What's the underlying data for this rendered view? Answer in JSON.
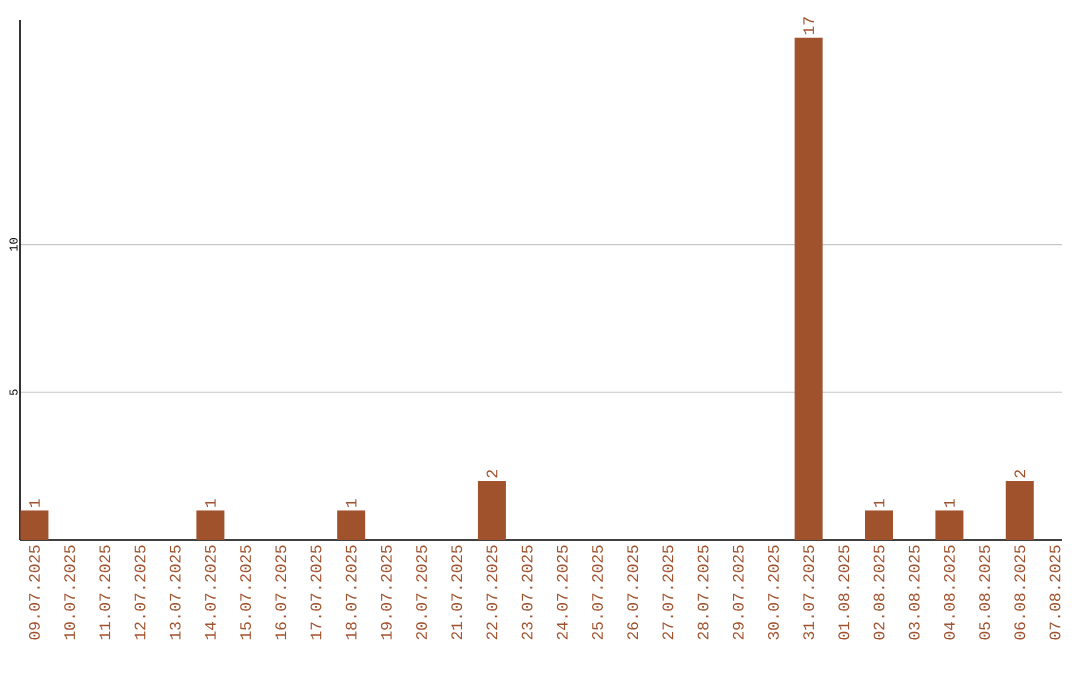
{
  "chart_data": {
    "type": "bar",
    "categories": [
      "09.07.2025",
      "10.07.2025",
      "11.07.2025",
      "12.07.2025",
      "13.07.2025",
      "14.07.2025",
      "15.07.2025",
      "16.07.2025",
      "17.07.2025",
      "18.07.2025",
      "19.07.2025",
      "20.07.2025",
      "21.07.2025",
      "22.07.2025",
      "23.07.2025",
      "24.07.2025",
      "25.07.2025",
      "26.07.2025",
      "27.07.2025",
      "28.07.2025",
      "29.07.2025",
      "30.07.2025",
      "31.07.2025",
      "01.08.2025",
      "02.08.2025",
      "03.08.2025",
      "04.08.2025",
      "05.08.2025",
      "06.08.2025",
      "07.08.2025"
    ],
    "values": [
      1,
      0,
      0,
      0,
      0,
      1,
      0,
      0,
      0,
      1,
      0,
      0,
      0,
      2,
      0,
      0,
      0,
      0,
      0,
      0,
      0,
      0,
      17,
      0,
      1,
      0,
      1,
      0,
      2,
      0
    ],
    "value_labels": [
      "1",
      null,
      null,
      null,
      null,
      "1",
      null,
      null,
      null,
      "1",
      null,
      null,
      null,
      "2",
      null,
      null,
      null,
      null,
      null,
      null,
      null,
      null,
      "17",
      null,
      "1",
      null,
      "1",
      null,
      "2",
      null
    ],
    "color": "#a0522d",
    "ylim": [
      0,
      17.6
    ],
    "yticks": [
      5,
      10
    ],
    "grid": "y"
  }
}
